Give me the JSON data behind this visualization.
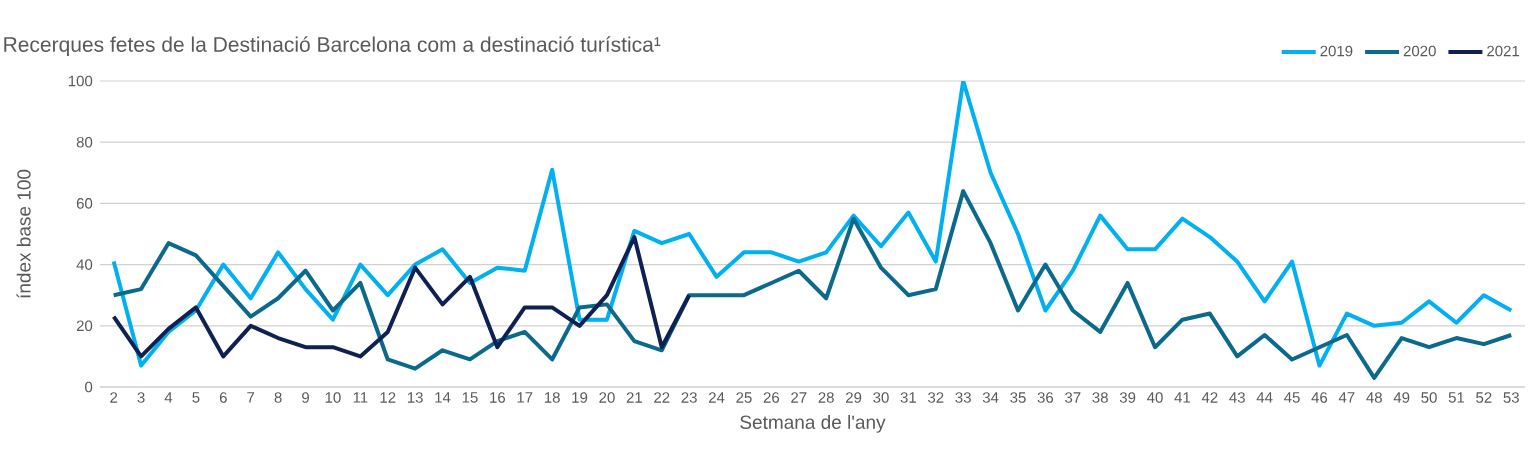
{
  "chart_data": {
    "type": "line",
    "title": "Recerques fetes de la Destinació Barcelona com a destinació turística¹",
    "xlabel": "Setmana de l'any",
    "ylabel": "índex base 100",
    "categories": [
      "2",
      "3",
      "4",
      "5",
      "6",
      "7",
      "8",
      "9",
      "10",
      "11",
      "12",
      "13",
      "14",
      "15",
      "16",
      "17",
      "18",
      "19",
      "20",
      "21",
      "22",
      "23",
      "24",
      "25",
      "26",
      "27",
      "28",
      "29",
      "30",
      "31",
      "32",
      "33",
      "34",
      "35",
      "36",
      "37",
      "38",
      "39",
      "40",
      "41",
      "42",
      "43",
      "44",
      "45",
      "46",
      "47",
      "48",
      "49",
      "50",
      "51",
      "52",
      "53"
    ],
    "series": [
      {
        "name": "2019",
        "color": "#00b0f0",
        "values": [
          41,
          7,
          18,
          25,
          40,
          29,
          44,
          32,
          22,
          40,
          30,
          40,
          45,
          34,
          39,
          38,
          71,
          22,
          22,
          51,
          47,
          50,
          36,
          44,
          44,
          41,
          44,
          56,
          46,
          57,
          41,
          100,
          70,
          50,
          25,
          38,
          56,
          45,
          45,
          55,
          49,
          41,
          28,
          41,
          7,
          24,
          20,
          21,
          28,
          21,
          30,
          25
        ]
      },
      {
        "name": "2020",
        "color": "#0b6a8c",
        "values": [
          30,
          32,
          47,
          43,
          33,
          23,
          29,
          38,
          25,
          34,
          9,
          6,
          12,
          9,
          15,
          18,
          9,
          26,
          27,
          15,
          12,
          30,
          30,
          30,
          34,
          38,
          29,
          55,
          39,
          30,
          32,
          64,
          47,
          25,
          40,
          25,
          18,
          34,
          13,
          22,
          24,
          10,
          17,
          9,
          13,
          17,
          3,
          16,
          13,
          16,
          14,
          17
        ]
      },
      {
        "name": "2021",
        "color": "#0e2152",
        "values": [
          23,
          10,
          19,
          26,
          10,
          20,
          16,
          13,
          13,
          10,
          18,
          39,
          27,
          36,
          13,
          26,
          26,
          20,
          30,
          49,
          13,
          30,
          null,
          null,
          null,
          null,
          null,
          null,
          null,
          null,
          null,
          null,
          null,
          null,
          null,
          null,
          null,
          null,
          null,
          null,
          null,
          null,
          null,
          null,
          null,
          null,
          null,
          null,
          null,
          null,
          null,
          null
        ]
      }
    ],
    "ylim": [
      0,
      100
    ],
    "yticks": [
      0,
      20,
      40,
      60,
      80,
      100
    ],
    "grid": "y",
    "legend": "top right",
    "marker": "none",
    "line_style": "solid"
  }
}
